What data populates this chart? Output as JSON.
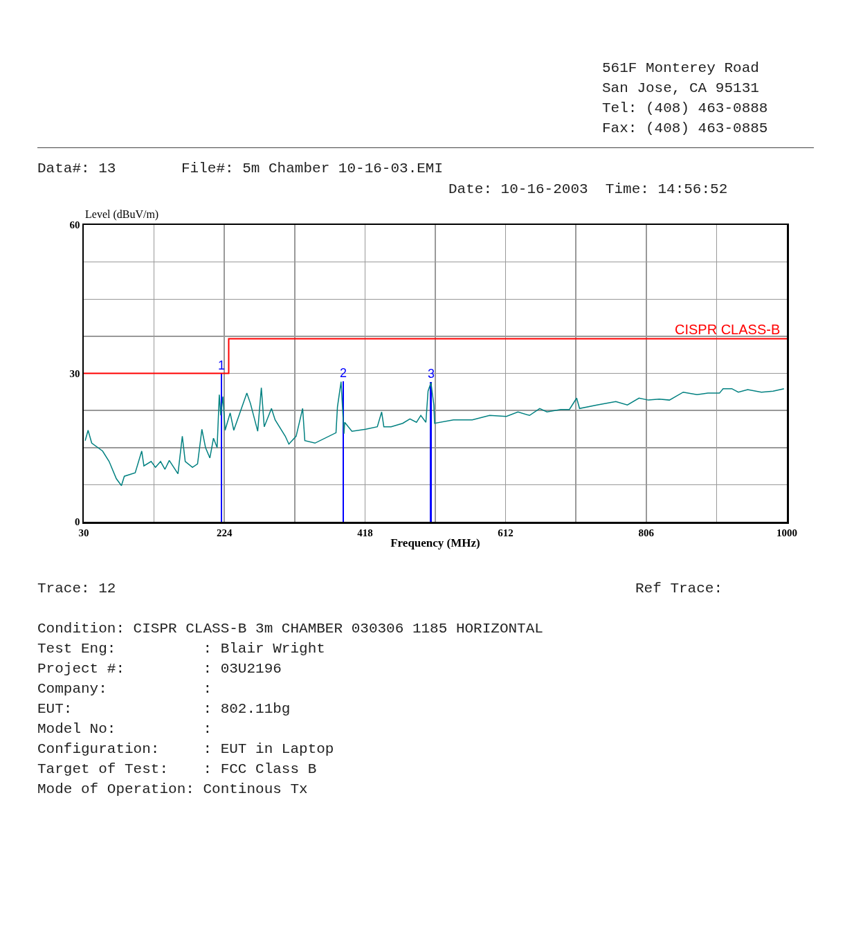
{
  "chart_data": {
    "type": "line",
    "xlabel": "Frequency (MHz)",
    "ylabel": "Level (dBuV/m)",
    "xlim": [
      30,
      1000
    ],
    "xticks": [
      30,
      {
        "value": 127,
        "label": null
      },
      224,
      {
        "value": 321,
        "label": null
      },
      418,
      {
        "value": 515,
        "label": null
      },
      612,
      {
        "value": 709,
        "label": null
      },
      806,
      {
        "value": 903,
        "label": null
      },
      1000
    ],
    "ylim": [
      0,
      60
    ],
    "yticks": [
      0,
      {
        "value": 7.5,
        "label": null
      },
      {
        "value": 15,
        "label": null
      },
      {
        "value": 22.5,
        "label": null
      },
      30,
      {
        "value": 37.5,
        "label": null
      },
      {
        "value": 45,
        "label": null
      },
      {
        "value": 52.5,
        "label": null
      },
      60
    ],
    "grid": true,
    "legend": false,
    "marker": "none",
    "series": [
      {
        "color": "#008080",
        "x": [
          32,
          36,
          41,
          56,
          65,
          75,
          82,
          86,
          101,
          110,
          113,
          123,
          129,
          136,
          142,
          148,
          160,
          166,
          170,
          180,
          187,
          193,
          198,
          204,
          209,
          214,
          217,
          219,
          222,
          225,
          232,
          237,
          255,
          260,
          270,
          275,
          279,
          289,
          294,
          308,
          313,
          323,
          332,
          335,
          349,
          378,
          380,
          385,
          389,
          390,
          400,
          419,
          435,
          441,
          444,
          454,
          470,
          480,
          489,
          495,
          502,
          505,
          509,
          513,
          514,
          540,
          566,
          590,
          613,
          629,
          645,
          659,
          669,
          688,
          700,
          710,
          714,
          738,
          764,
          780,
          796,
          809,
          824,
          838,
          857,
          876,
          891,
          907,
          912,
          924,
          933,
          946,
          965,
          981,
          996
        ],
        "values": [
          16.4,
          18.5,
          15.9,
          14.3,
          12.2,
          8.7,
          7.3,
          9.2,
          9.9,
          14.3,
          11.3,
          12.2,
          11.0,
          12.2,
          10.6,
          12.4,
          9.7,
          17.3,
          12.2,
          11.0,
          11.7,
          18.7,
          15.0,
          12.9,
          16.9,
          15.0,
          25.7,
          21.5,
          25.3,
          18.5,
          22.0,
          18.5,
          26.0,
          23.9,
          18.3,
          27.1,
          19.2,
          22.9,
          20.6,
          17.3,
          15.7,
          17.3,
          22.9,
          16.4,
          15.9,
          18.0,
          23.2,
          28.3,
          17.8,
          20.1,
          18.3,
          18.7,
          19.2,
          22.2,
          19.2,
          19.2,
          19.9,
          20.8,
          20.1,
          21.5,
          20.1,
          26.4,
          28.1,
          23.6,
          19.9,
          20.6,
          20.6,
          21.5,
          21.3,
          22.2,
          21.5,
          22.9,
          22.2,
          22.7,
          22.7,
          25.0,
          22.9,
          23.6,
          24.3,
          23.6,
          25.0,
          24.6,
          24.8,
          24.6,
          26.2,
          25.7,
          26.0,
          26.0,
          26.9,
          26.9,
          26.2,
          26.7,
          26.2,
          26.4,
          26.9
        ]
      },
      {
        "type": "step",
        "name": "CISPR CLASS-B",
        "color": "#ff0000",
        "x": [
          30,
          230,
          1000
        ],
        "values": [
          30,
          37,
          37
        ]
      },
      {
        "type": "bar",
        "color": "#0000ff",
        "x": [
          220,
          388,
          509
        ],
        "values": [
          29.9,
          28.4,
          28.3
        ]
      }
    ],
    "annotations": [
      "561F Monterey Road",
      "San Jose, CA 95131",
      "Tel: (408) 463-0888",
      "Fax: (408) 463-0885",
      "Data#: 13",
      "File#: 5m Chamber 10-16-03.EMI",
      "Date: 10-16-2003  Time: 14:56:52",
      "Trace: 12",
      "Ref Trace:",
      "Condition: CISPR CLASS-B 3m CHAMBER 030306 1185 HORIZONTAL",
      "Test Eng:          : Blair Wright",
      "Project #:         : 03U2196",
      "Company:           :",
      "EUT:               : 802.11bg",
      "Model No:          :",
      "Configuration:     : EUT in Laptop",
      "Target of Test:    : FCC Class B",
      "Mode of Operation: Continous Tx",
      {
        "text": "1",
        "x": 220,
        "y": 29.9
      },
      {
        "text": "2",
        "x": 388,
        "y": 28.4
      },
      {
        "text": "3",
        "x": 509,
        "y": 28.3
      }
    ]
  }
}
